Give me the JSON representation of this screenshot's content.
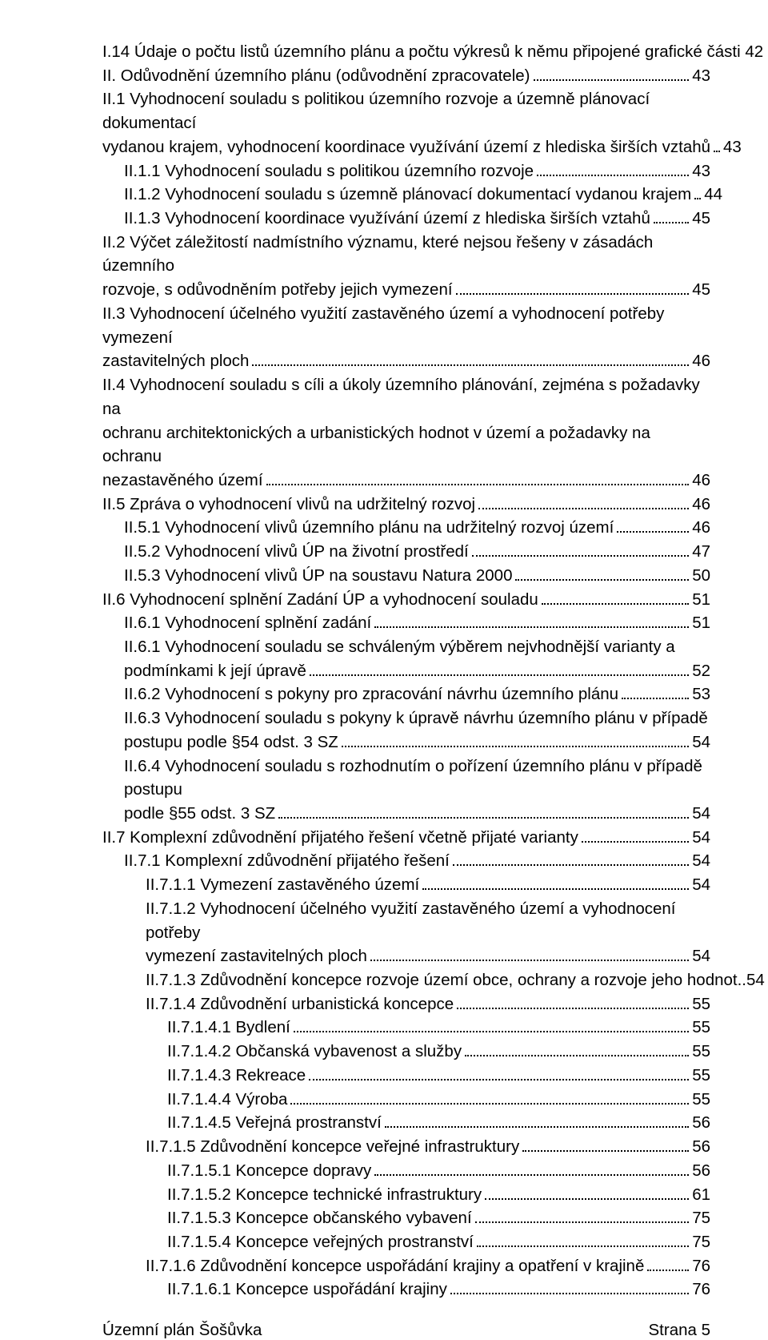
{
  "toc": {
    "entries": [
      {
        "indent": 0,
        "title": "I.14 Údaje o počtu listů územního plánu a počtu výkresů k němu připojené grafické části",
        "page": "42",
        "wrap": false,
        "nodots": true
      },
      {
        "indent": 0,
        "title": "II. Odůvodnění územního plánu (odůvodnění zpracovatele)",
        "page": "43",
        "wrap": false
      },
      {
        "indent": 0,
        "titleA": "II.1 Vyhodnocení souladu s politikou územního rozvoje a územně plánovací dokumentací",
        "titleB": "vydanou krajem, vyhodnocení koordinace využívání území z hlediska širších vztahů",
        "page": "43",
        "wrap": true
      },
      {
        "indent": 1,
        "title": "II.1.1 Vyhodnocení souladu s politikou územního rozvoje",
        "page": "43",
        "wrap": false
      },
      {
        "indent": 1,
        "title": "II.1.2 Vyhodnocení souladu s  územně plánovací dokumentací vydanou krajem",
        "page": "44",
        "wrap": false
      },
      {
        "indent": 1,
        "title": "II.1.3 Vyhodnocení koordinace využívání území z hlediska širších vztahů",
        "page": "45",
        "wrap": false
      },
      {
        "indent": 0,
        "titleA": "II.2 Výčet záležitostí nadmístního významu, které nejsou řešeny v zásadách územního",
        "titleB": "rozvoje, s odůvodněním potřeby jejich vymezení",
        "page": "45",
        "wrap": true
      },
      {
        "indent": 0,
        "titleA": "II.3 Vyhodnocení účelného využití zastavěného území a vyhodnocení potřeby vymezení",
        "titleB": "zastavitelných ploch",
        "page": "46",
        "wrap": true
      },
      {
        "indent": 0,
        "titleA": "II.4 Vyhodnocení souladu s cíli a úkoly územního plánování, zejména s požadavky na",
        "titleB": "ochranu architektonických a urbanistických hodnot v území a požadavky na ochranu",
        "titleC": "nezastavěného území",
        "page": "46",
        "wrap": true
      },
      {
        "indent": 0,
        "title": "II.5 Zpráva o vyhodnocení vlivů na udržitelný rozvoj",
        "page": "46",
        "wrap": false
      },
      {
        "indent": 1,
        "title": "II.5.1 Vyhodnocení vlivů územního plánu na udržitelný rozvoj území",
        "page": "46",
        "wrap": false
      },
      {
        "indent": 1,
        "title": "II.5.2 Vyhodnocení vlivů ÚP na životní prostředí",
        "page": "47",
        "wrap": false
      },
      {
        "indent": 1,
        "title": "II.5.3 Vyhodnocení vlivů ÚP na soustavu Natura 2000",
        "page": "50",
        "wrap": false
      },
      {
        "indent": 0,
        "title": "II.6 Vyhodnocení splnění Zadání ÚP a vyhodnocení souladu",
        "page": "51",
        "wrap": false
      },
      {
        "indent": 1,
        "title": "II.6.1 Vyhodnocení splnění zadání",
        "page": "51",
        "wrap": false
      },
      {
        "indent": 1,
        "titleA": "II.6.1 Vyhodnocení souladu se schváleným výběrem nejvhodnější varianty a",
        "titleB": "podmínkami k její úpravě",
        "page": "52",
        "wrap": true
      },
      {
        "indent": 1,
        "title": "II.6.2 Vyhodnocení s pokyny pro zpracování návrhu územního plánu",
        "page": "53",
        "wrap": false
      },
      {
        "indent": 1,
        "titleA": "II.6.3 Vyhodnocení souladu s pokyny k úpravě návrhu územního plánu v případě",
        "titleB": "postupu podle §54 odst. 3 SZ",
        "page": "54",
        "wrap": true
      },
      {
        "indent": 1,
        "titleA": "II.6.4 Vyhodnocení souladu s rozhodnutím o pořízení územního plánu v případě postupu",
        "titleB": "podle §55 odst. 3 SZ",
        "page": "54",
        "wrap": true
      },
      {
        "indent": 0,
        "title": "II.7 Komplexní zdůvodnění přijatého řešení včetně přijaté varianty",
        "page": "54",
        "wrap": false
      },
      {
        "indent": 1,
        "title": "II.7.1 Komplexní zdůvodnění přijatého řešení",
        "page": "54",
        "wrap": false
      },
      {
        "indent": 2,
        "title": "II.7.1.1 Vymezení zastavěného území",
        "page": "54",
        "wrap": false
      },
      {
        "indent": 2,
        "titleA": "II.7.1.2 Vyhodnocení účelného využití zastavěného území a vyhodnocení potřeby",
        "titleB": "vymezení zastavitelných ploch",
        "page": "54",
        "wrap": true
      },
      {
        "indent": 2,
        "title": "II.7.1.3 Zdůvodnění koncepce rozvoje území obce, ochrany a rozvoje jeho hodnot",
        "page": "54",
        "wrap": false,
        "tightdots": true
      },
      {
        "indent": 2,
        "title": "II.7.1.4 Zdůvodnění urbanistická koncepce",
        "page": "55",
        "wrap": false
      },
      {
        "indent": 3,
        "title": "II.7.1.4.1 Bydlení",
        "page": "55",
        "wrap": false
      },
      {
        "indent": 3,
        "title": "II.7.1.4.2 Občanská vybavenost a služby",
        "page": "55",
        "wrap": false
      },
      {
        "indent": 3,
        "title": "II.7.1.4.3 Rekreace",
        "page": "55",
        "wrap": false
      },
      {
        "indent": 3,
        "title": "II.7.1.4.4 Výroba",
        "page": "55",
        "wrap": false
      },
      {
        "indent": 3,
        "title": "II.7.1.4.5 Veřejná prostranství",
        "page": "56",
        "wrap": false
      },
      {
        "indent": 2,
        "title": "II.7.1.5 Zdůvodnění koncepce veřejné infrastruktury",
        "page": "56",
        "wrap": false
      },
      {
        "indent": 3,
        "title": "II.7.1.5.1 Koncepce dopravy",
        "page": "56",
        "wrap": false
      },
      {
        "indent": 3,
        "title": "II.7.1.5.2 Koncepce technické infrastruktury",
        "page": "61",
        "wrap": false
      },
      {
        "indent": 3,
        "title": "II.7.1.5.3 Koncepce občanského vybavení",
        "page": "75",
        "wrap": false
      },
      {
        "indent": 3,
        "title": "II.7.1.5.4 Koncepce veřejných prostranství",
        "page": "75",
        "wrap": false
      },
      {
        "indent": 2,
        "title": "II.7.1.6 Zdůvodnění koncepce uspořádání krajiny a opatření v krajině",
        "page": "76",
        "wrap": false
      },
      {
        "indent": 3,
        "title": "II.7.1.6.1 Koncepce uspořádání krajiny",
        "page": "76",
        "wrap": false
      }
    ]
  },
  "footer": {
    "left": "Územní plán Šošůvka",
    "right": "Strana 5"
  }
}
